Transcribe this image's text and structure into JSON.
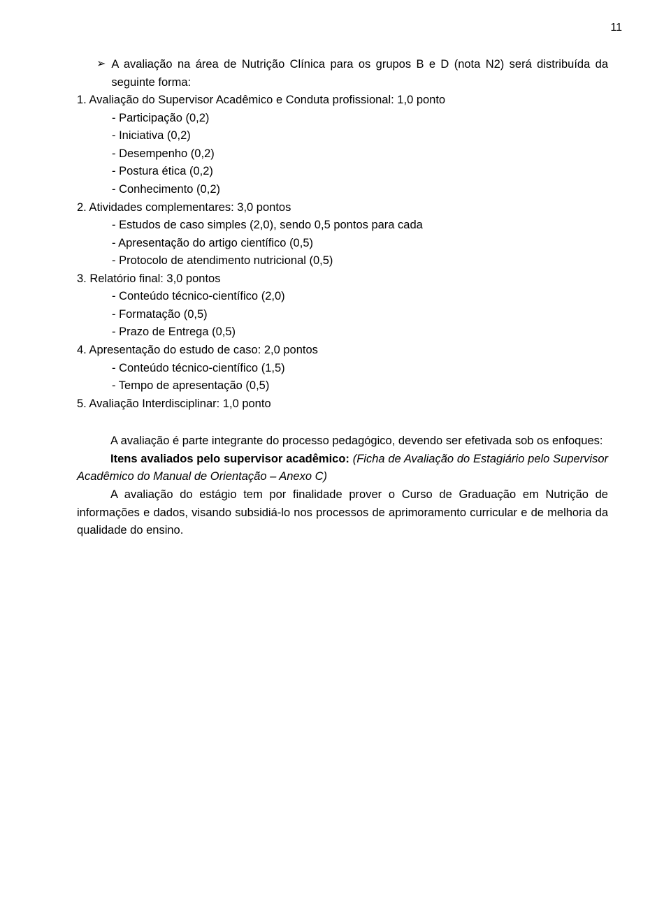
{
  "pageNumber": "11",
  "sectionHead": "A avaliação na área de Nutrição Clínica para os grupos B e D (nota N2) será distribuída da seguinte forma:",
  "items": [
    {
      "num": "1. Avaliação do Supervisor Acadêmico e Conduta profissional: 1,0 ponto",
      "subs": [
        "- Participação (0,2)",
        "- Iniciativa (0,2)",
        "- Desempenho (0,2)",
        "- Postura ética (0,2)",
        "- Conhecimento (0,2)"
      ]
    },
    {
      "num": "2. Atividades complementares: 3,0 pontos",
      "subs": [
        "- Estudos de caso simples (2,0), sendo 0,5 pontos para cada",
        "- Apresentação do artigo científico (0,5)",
        "- Protocolo de atendimento nutricional (0,5)"
      ]
    },
    {
      "num": "3. Relatório final: 3,0 pontos",
      "subs": [
        "- Conteúdo técnico-científico (2,0)",
        "- Formatação (0,5)",
        "- Prazo de Entrega (0,5)"
      ]
    },
    {
      "num": "4. Apresentação do estudo de caso: 2,0 pontos",
      "subs": [
        "- Conteúdo técnico-científico (1,5)",
        "- Tempo de apresentação (0,5)"
      ]
    },
    {
      "num": "5. Avaliação Interdisciplinar: 1,0 ponto",
      "subs": []
    }
  ],
  "para1_a": "A avaliação é parte integrante do processo pedagógico, devendo ser efetivada sob os enfoques:",
  "para2_bold": "Itens avaliados pelo supervisor acadêmico: ",
  "para2_italic": "(Ficha de Avaliação do Estagiário pelo Supervisor Acadêmico do Manual de Orientação – Anexo C)",
  "para3": "A avaliação do estágio tem por finalidade prover o Curso de Graduação em Nutrição de informações e dados, visando subsidiá-lo nos processos de aprimoramento curricular e de melhoria da qualidade do ensino."
}
